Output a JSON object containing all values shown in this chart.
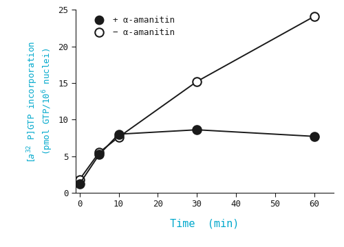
{
  "x_plus": [
    0,
    5,
    10,
    30,
    60
  ],
  "y_plus": [
    1.2,
    5.2,
    8.0,
    8.6,
    7.7
  ],
  "x_minus": [
    0,
    5,
    10,
    30,
    60
  ],
  "y_minus": [
    1.8,
    5.5,
    7.6,
    15.2,
    24.1
  ],
  "xlim": [
    -1,
    65
  ],
  "ylim": [
    0,
    25
  ],
  "xticks": [
    0,
    10,
    20,
    30,
    40,
    50,
    60
  ],
  "yticks": [
    0,
    5,
    10,
    15,
    20,
    25
  ],
  "xlabel": "Time  (min)",
  "ylabel_line1": "$[a^{32}$ P]GTP incorporation",
  "ylabel_line2": "(pmol GTP/10$^6$ nuclei)",
  "label_plus": "+ α-amanitin",
  "label_minus": "− α-amanitin",
  "line_color": "#1a1a1a",
  "markersize": 9,
  "linewidth": 1.4,
  "label_color": "#00a8cc",
  "bg_color": "#ffffff",
  "font_family": "DejaVu Sans Mono",
  "tick_fontsize": 9,
  "xlabel_fontsize": 11,
  "ylabel_fontsize": 9,
  "legend_fontsize": 9
}
